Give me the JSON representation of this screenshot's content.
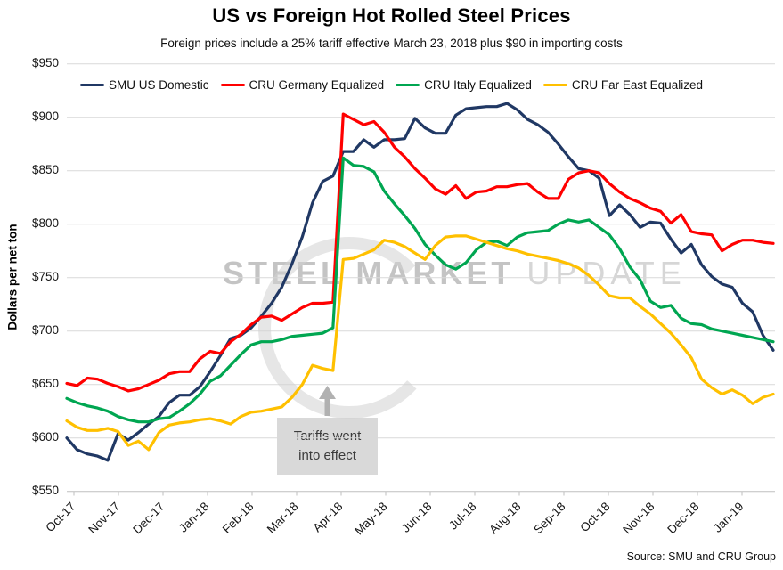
{
  "page": {
    "title": "US vs Foreign Hot Rolled Steel Prices",
    "subtitle": "Foreign prices include a 25% tariff effective March 23, 2018 plus $90 in importing costs",
    "source": "Source: SMU and CRU Group"
  },
  "chart_data": {
    "type": "line",
    "title": "US vs Foreign Hot Rolled Steel Prices",
    "subtitle": "Foreign prices include a 25% tariff effective March 23, 2018 plus $90 in importing costs",
    "ylabel": "Dollars per net ton",
    "y_axis": {
      "min": 550,
      "max": 950,
      "step": 50,
      "prefix": "$"
    },
    "x_categories": [
      "Oct-17",
      "Nov-17",
      "Dec-17",
      "Jan-18",
      "Feb-18",
      "Mar-18",
      "Apr-18",
      "May-18",
      "Jun-18",
      "Jul-18",
      "Aug-18",
      "Sep-18",
      "Oct-18",
      "Nov-18",
      "Dec-18",
      "Jan-19"
    ],
    "x_resolution": "weekly",
    "grid": "horizontal",
    "legend_position": "top",
    "annotation": {
      "lines": [
        "Tariffs went",
        "into effect"
      ],
      "points_to": "Apr-18 tariff jump"
    },
    "watermark": {
      "part1": "STEEL MARKET",
      "part2": "UPDATE"
    },
    "colors": {
      "grid": "#d9d9d9",
      "axis": "#bfbfbf",
      "annotation_box": "#d9d9d9",
      "arrow": "#b1b1b1"
    },
    "series": [
      {
        "name": "SMU US Domestic",
        "color": "#203864",
        "values": [
          600,
          589,
          585,
          583,
          579,
          604,
          598,
          605,
          613,
          620,
          633,
          640,
          640,
          648,
          662,
          677,
          693,
          696,
          703,
          714,
          726,
          741,
          763,
          788,
          820,
          840,
          845,
          868,
          868,
          879,
          872,
          879,
          879,
          880,
          899,
          890,
          885,
          885,
          902,
          908,
          909,
          910,
          910,
          913,
          907,
          898,
          893,
          886,
          875,
          863,
          852,
          850,
          843,
          808,
          818,
          809,
          797,
          802,
          801,
          786,
          773,
          781,
          762,
          751,
          744,
          741,
          726,
          718,
          696,
          682
        ]
      },
      {
        "name": "CRU Germany Equalized",
        "color": "#ff0000",
        "values": [
          651,
          649,
          656,
          655,
          651,
          648,
          644,
          646,
          650,
          654,
          660,
          662,
          662,
          674,
          681,
          679,
          690,
          697,
          706,
          713,
          714,
          710,
          716,
          722,
          726,
          726,
          727,
          903,
          898,
          893,
          896,
          886,
          872,
          863,
          852,
          843,
          833,
          828,
          836,
          824,
          830,
          831,
          835,
          835,
          837,
          838,
          830,
          824,
          824,
          842,
          848,
          850,
          848,
          838,
          830,
          824,
          820,
          815,
          812,
          801,
          809,
          793,
          791,
          790,
          775,
          781,
          785,
          785,
          783,
          782
        ]
      },
      {
        "name": "CRU Italy Equalized",
        "color": "#00a651",
        "values": [
          637,
          633,
          630,
          628,
          625,
          620,
          617,
          615,
          615,
          618,
          619,
          625,
          632,
          641,
          653,
          658,
          668,
          678,
          687,
          690,
          690,
          692,
          695,
          696,
          697,
          698,
          703,
          862,
          855,
          854,
          849,
          831,
          819,
          808,
          796,
          781,
          771,
          762,
          758,
          764,
          776,
          783,
          784,
          780,
          788,
          792,
          793,
          794,
          800,
          804,
          802,
          804,
          797,
          790,
          777,
          760,
          748,
          728,
          722,
          724,
          712,
          707,
          706,
          702,
          700,
          698,
          696,
          694,
          692,
          690
        ]
      },
      {
        "name": "CRU Far East Equalized",
        "color": "#ffc000",
        "values": [
          616,
          610,
          607,
          607,
          609,
          606,
          593,
          597,
          589,
          605,
          612,
          614,
          615,
          617,
          618,
          616,
          613,
          620,
          624,
          625,
          627,
          629,
          638,
          650,
          668,
          665,
          663,
          767,
          768,
          772,
          776,
          785,
          783,
          779,
          773,
          767,
          780,
          788,
          789,
          789,
          786,
          783,
          780,
          777,
          775,
          772,
          770,
          768,
          766,
          763,
          759,
          752,
          743,
          733,
          731,
          731,
          723,
          716,
          707,
          698,
          687,
          675,
          655,
          647,
          641,
          645,
          640,
          632,
          638,
          641
        ]
      }
    ],
    "source": "Source: SMU and CRU Group"
  }
}
